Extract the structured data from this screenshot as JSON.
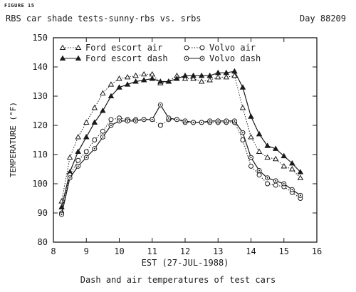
{
  "figure_label": "FIGURE 15",
  "header": {
    "title": "RBS car shade tests-sunny-rbs vs. srbs",
    "day": "Day 88209"
  },
  "caption": "Dash and air temperatures of test cars",
  "chart_data": {
    "type": "line",
    "xlabel": "EST (27-JUL-1988)",
    "ylabel": "TEMPERATURE (°F)",
    "xlim": [
      8,
      16
    ],
    "ylim": [
      80,
      150
    ],
    "xticks": [
      8,
      9,
      10,
      11,
      12,
      13,
      14,
      15,
      16
    ],
    "yticks": [
      80,
      90,
      100,
      110,
      120,
      130,
      140,
      150
    ],
    "grid": false,
    "legend_position": "top",
    "series": [
      {
        "name": "Ford escort air",
        "marker": "open-triangle",
        "line": "dotted",
        "x": [
          8.25,
          8.5,
          8.75,
          9.0,
          9.25,
          9.5,
          9.75,
          10.0,
          10.25,
          10.5,
          10.75,
          11.0,
          11.25,
          11.5,
          11.75,
          12.0,
          12.25,
          12.5,
          12.75,
          13.0,
          13.25,
          13.5,
          13.75,
          14.0,
          14.25,
          14.5,
          14.75,
          15.0,
          15.25,
          15.5
        ],
        "y": [
          94,
          109,
          116,
          121,
          126,
          131,
          134,
          136,
          136.5,
          137,
          137.5,
          137.5,
          134.5,
          135,
          137,
          136,
          136,
          135,
          135.5,
          136.5,
          136.5,
          137,
          126,
          116,
          111,
          109,
          108.5,
          106,
          105,
          102
        ]
      },
      {
        "name": "Ford escort dash",
        "marker": "filled-triangle",
        "line": "solid",
        "x": [
          8.25,
          8.5,
          8.75,
          9.0,
          9.25,
          9.5,
          9.75,
          10.0,
          10.25,
          10.5,
          10.75,
          11.0,
          11.25,
          11.5,
          11.75,
          12.0,
          12.25,
          12.5,
          12.75,
          13.0,
          13.25,
          13.5,
          13.75,
          14.0,
          14.25,
          14.5,
          14.75,
          15.0,
          15.25,
          15.5
        ],
        "y": [
          92,
          104,
          111,
          116,
          121,
          125,
          130,
          133,
          134,
          135,
          135.5,
          136,
          135,
          135,
          136,
          137,
          137,
          137,
          137,
          138,
          138,
          138.5,
          133,
          123,
          117,
          113,
          112,
          109.5,
          107,
          104
        ]
      },
      {
        "name": "Volvo air",
        "marker": "open-circle",
        "line": "dotted",
        "x": [
          8.25,
          8.5,
          8.75,
          9.0,
          9.25,
          9.5,
          9.75,
          10.0,
          10.25,
          10.5,
          10.75,
          11.0,
          11.25,
          11.5,
          11.75,
          12.0,
          12.25,
          12.5,
          12.75,
          13.0,
          13.25,
          13.5,
          13.75,
          14.0,
          14.25,
          14.5,
          14.75,
          15.0,
          15.25,
          15.5
        ],
        "y": [
          90,
          103,
          108,
          111,
          115,
          118,
          122,
          122.5,
          122,
          122,
          122,
          122,
          120,
          122,
          122,
          121,
          121,
          121,
          121,
          121,
          121,
          121,
          115,
          106,
          103,
          100,
          99.5,
          99,
          97,
          95
        ]
      },
      {
        "name": "Volvo dash",
        "marker": "circle-dot",
        "line": "solid",
        "x": [
          8.25,
          8.5,
          8.75,
          9.0,
          9.25,
          9.5,
          9.75,
          10.0,
          10.25,
          10.5,
          10.75,
          11.0,
          11.25,
          11.5,
          11.75,
          12.0,
          12.25,
          12.5,
          12.75,
          13.0,
          13.25,
          13.5,
          13.75,
          14.0,
          14.25,
          14.5,
          14.75,
          15.0,
          15.25,
          15.5
        ],
        "y": [
          89.5,
          102,
          106,
          109,
          112,
          116,
          120,
          121.5,
          121.5,
          121.5,
          122,
          122,
          127,
          122.5,
          122,
          121.5,
          121,
          121,
          121.5,
          121.5,
          121.5,
          121.5,
          117.5,
          109,
          104.5,
          102,
          101,
          100,
          98,
          96
        ]
      }
    ]
  }
}
